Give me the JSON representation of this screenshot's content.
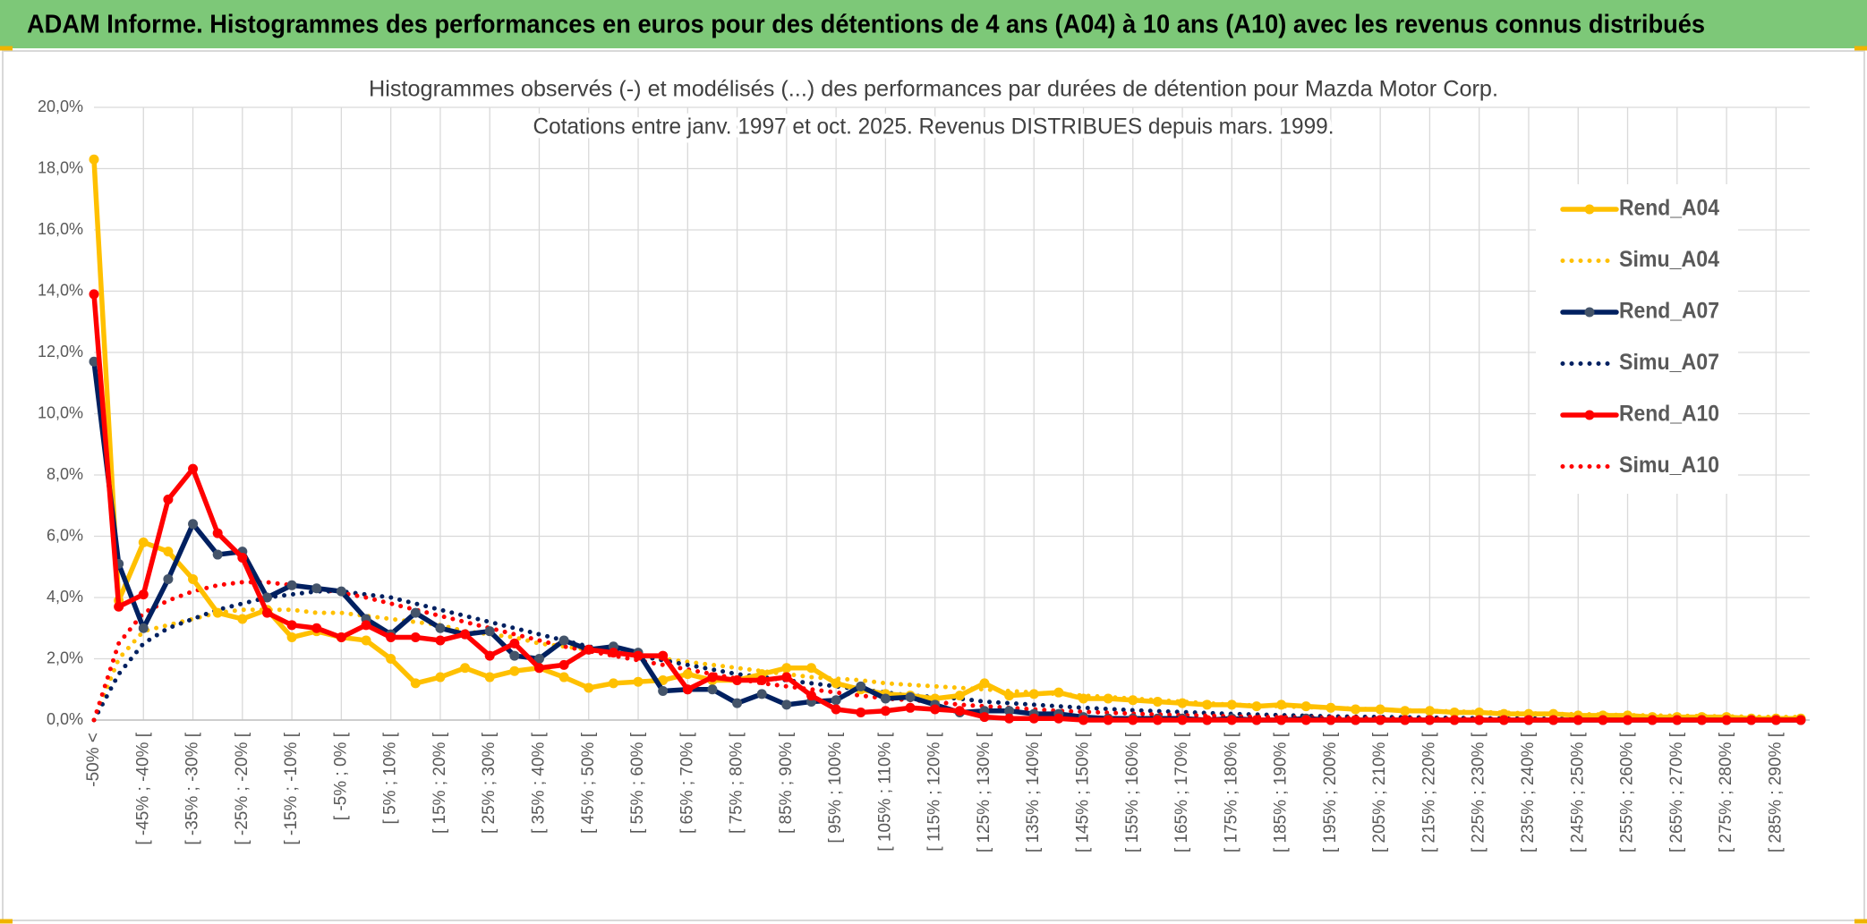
{
  "header": {
    "title": "ADAM Informe. Histogrammes des performances en euros pour des détentions de 4 ans (A04) à 10 ans (A10) avec les revenus connus distribués"
  },
  "chart_data": {
    "type": "line",
    "title": "Histogrammes observés (-) et modélisés (...) des performances par durées de détention pour Mazda Motor Corp.",
    "subtitle": "Cotations entre janv. 1997 et oct. 2025. Revenus DISTRIBUES depuis mars. 1999.",
    "categories": [
      "-50% <",
      null,
      "[ -45% ; -40% [",
      null,
      "[ -35% ; -30% [",
      null,
      "[ -25% ; -20% [",
      null,
      "[ -15% ; -10% [",
      null,
      "[ -5% ; 0% [",
      null,
      "[ 5% ; 10% [",
      null,
      "[ 15% ; 20% [",
      null,
      "[ 25% ; 30% [",
      null,
      "[ 35% ; 40% [",
      null,
      "[ 45% ; 50% [",
      null,
      "[ 55% ; 60% [",
      null,
      "[ 65% ; 70% [",
      null,
      "[ 75% ; 80% [",
      null,
      "[ 85% ; 90% [",
      null,
      "[ 95% ; 100% [",
      null,
      "[ 105% ; 110% [",
      null,
      "[ 115% ; 120% [",
      null,
      "[ 125% ; 130% [",
      null,
      "[ 135% ; 140% [",
      null,
      "[ 145% ; 150% [",
      null,
      "[ 155% ; 160% [",
      null,
      "[ 165% ; 170% [",
      null,
      "[ 175% ; 180% [",
      null,
      "[ 185% ; 190% [",
      null,
      "[ 195% ; 200% [",
      null,
      "[ 205% ; 210% [",
      null,
      "[ 215% ; 220% [",
      null,
      "[ 225% ; 230% [",
      null,
      "[ 235% ; 240% [",
      null,
      "[ 245% ; 250% [",
      null,
      "[ 255% ; 260% [",
      null,
      "[ 265% ; 270% [",
      null,
      "[ 275% ; 280% [",
      null,
      "[ 285% ; 290% [",
      null
    ],
    "series": [
      {
        "name": "Rend_A04",
        "color": "#FFC000",
        "line_style": "solid",
        "markers": true,
        "values": [
          18.3,
          3.9,
          5.8,
          5.5,
          4.6,
          3.5,
          3.3,
          3.6,
          2.7,
          2.9,
          2.7,
          2.6,
          2.0,
          1.2,
          1.4,
          1.7,
          1.4,
          1.6,
          1.7,
          1.4,
          1.05,
          1.2,
          1.25,
          1.3,
          1.5,
          1.3,
          1.3,
          1.5,
          1.7,
          1.7,
          1.2,
          1.0,
          0.85,
          0.8,
          0.7,
          0.8,
          1.2,
          0.8,
          0.85,
          0.9,
          0.7,
          0.7,
          0.65,
          0.6,
          0.55,
          0.5,
          0.5,
          0.45,
          0.5,
          0.45,
          0.4,
          0.35,
          0.35,
          0.3,
          0.3,
          0.25,
          0.25,
          0.2,
          0.2,
          0.2,
          0.15,
          0.15,
          0.15,
          0.1,
          0.1,
          0.1,
          0.1,
          0.05,
          0.05,
          0.05
        ]
      },
      {
        "name": "Simu_A04",
        "color": "#FFC000",
        "line_style": "dotted",
        "markers": false,
        "values": [
          0,
          2.0,
          2.9,
          3.1,
          3.3,
          3.5,
          3.6,
          3.6,
          3.6,
          3.5,
          3.5,
          3.4,
          3.3,
          3.2,
          3.1,
          2.9,
          2.8,
          2.7,
          2.5,
          2.4,
          2.3,
          2.2,
          2.1,
          2.0,
          1.9,
          1.8,
          1.7,
          1.6,
          1.5,
          1.4,
          1.35,
          1.3,
          1.2,
          1.15,
          1.1,
          1.05,
          1.0,
          0.95,
          0.9,
          0.85,
          0.8,
          0.75,
          0.7,
          0.65,
          0.6,
          0.55,
          0.5,
          0.48,
          0.45,
          0.42,
          0.4,
          0.37,
          0.34,
          0.32,
          0.3,
          0.28,
          0.26,
          0.24,
          0.22,
          0.2,
          0.19,
          0.18,
          0.16,
          0.15,
          0.14,
          0.13,
          0.12,
          0.11,
          0.1,
          0.1
        ]
      },
      {
        "name": "Rend_A07",
        "color": "#002060",
        "line_style": "solid",
        "markers": true,
        "values": [
          11.7,
          5.1,
          3.0,
          4.6,
          6.4,
          5.4,
          5.5,
          4.0,
          4.4,
          4.3,
          4.2,
          3.3,
          2.8,
          3.5,
          3.0,
          2.8,
          2.9,
          2.1,
          2.0,
          2.6,
          2.3,
          2.4,
          2.2,
          0.95,
          1.0,
          1.0,
          0.55,
          0.85,
          0.5,
          0.6,
          0.65,
          1.1,
          0.7,
          0.75,
          0.5,
          0.25,
          0.3,
          0.3,
          0.2,
          0.2,
          0.1,
          0.05,
          0.05,
          0.05,
          0.05,
          0,
          0.05,
          0,
          0,
          0.05,
          0,
          0,
          0,
          0,
          0,
          0,
          0,
          0,
          0,
          0,
          0,
          0,
          0,
          0,
          0,
          0,
          0,
          0,
          0,
          0
        ]
      },
      {
        "name": "Simu_A07",
        "color": "#002060",
        "line_style": "dotted",
        "markers": false,
        "values": [
          0,
          1.5,
          2.5,
          3.0,
          3.3,
          3.6,
          3.8,
          4.0,
          4.1,
          4.2,
          4.2,
          4.1,
          4.0,
          3.8,
          3.6,
          3.4,
          3.2,
          3.0,
          2.8,
          2.6,
          2.4,
          2.25,
          2.1,
          1.95,
          1.8,
          1.65,
          1.5,
          1.4,
          1.3,
          1.2,
          1.1,
          1.0,
          0.9,
          0.8,
          0.75,
          0.7,
          0.6,
          0.55,
          0.5,
          0.45,
          0.4,
          0.36,
          0.32,
          0.29,
          0.26,
          0.23,
          0.2,
          0.18,
          0.16,
          0.14,
          0.12,
          0.11,
          0.1,
          0.09,
          0.08,
          0.07,
          0.06,
          0.05,
          0.05,
          0.04,
          0.04,
          0.03,
          0.03,
          0.03,
          0.02,
          0.02,
          0.02,
          0.02,
          0.01,
          0.01
        ]
      },
      {
        "name": "Rend_A10",
        "color": "#FF0000",
        "line_style": "solid",
        "markers": true,
        "values": [
          13.9,
          3.7,
          4.1,
          7.2,
          8.2,
          6.1,
          5.3,
          3.5,
          3.1,
          3.0,
          2.7,
          3.1,
          2.7,
          2.7,
          2.6,
          2.8,
          2.1,
          2.5,
          1.7,
          1.8,
          2.3,
          2.2,
          2.1,
          2.1,
          1.0,
          1.4,
          1.3,
          1.3,
          1.4,
          0.8,
          0.35,
          0.25,
          0.3,
          0.4,
          0.35,
          0.3,
          0.1,
          0.05,
          0.05,
          0.05,
          0,
          0,
          0,
          0,
          0,
          0,
          0,
          0,
          0,
          0,
          0,
          0,
          0,
          0,
          0,
          0,
          0,
          0,
          0,
          0,
          0,
          0,
          0,
          0,
          0,
          0,
          0,
          0,
          0,
          0
        ]
      },
      {
        "name": "Simu_A10",
        "color": "#FF0000",
        "line_style": "dotted",
        "markers": false,
        "values": [
          0,
          2.5,
          3.5,
          3.9,
          4.2,
          4.4,
          4.5,
          4.5,
          4.4,
          4.3,
          4.15,
          4.0,
          3.8,
          3.6,
          3.4,
          3.2,
          3.0,
          2.8,
          2.6,
          2.4,
          2.25,
          2.1,
          1.95,
          1.8,
          1.65,
          1.5,
          1.35,
          1.2,
          1.1,
          1.0,
          0.9,
          0.8,
          0.7,
          0.65,
          0.6,
          0.5,
          0.45,
          0.4,
          0.35,
          0.3,
          0.27,
          0.24,
          0.21,
          0.18,
          0.16,
          0.14,
          0.12,
          0.1,
          0.09,
          0.08,
          0.07,
          0.06,
          0.05,
          0.05,
          0.04,
          0.04,
          0.03,
          0.03,
          0.02,
          0.02,
          0.02,
          0.02,
          0.01,
          0.01,
          0.01,
          0.01,
          0.01,
          0.01,
          0,
          0
        ]
      }
    ],
    "ylim": [
      0,
      20
    ],
    "yticks": [
      {
        "value": 0,
        "label": "0,0%"
      },
      {
        "value": 2,
        "label": "2,0%"
      },
      {
        "value": 4,
        "label": "4,0%"
      },
      {
        "value": 6,
        "label": "6,0%"
      },
      {
        "value": 8,
        "label": "8,0%"
      },
      {
        "value": 10,
        "label": "10,0%"
      },
      {
        "value": 12,
        "label": "12,0%"
      },
      {
        "value": 14,
        "label": "14,0%"
      },
      {
        "value": 16,
        "label": "16,0%"
      },
      {
        "value": 18,
        "label": "18,0%"
      },
      {
        "value": 20,
        "label": "20,0%"
      }
    ],
    "grid": true,
    "legend": "right"
  }
}
